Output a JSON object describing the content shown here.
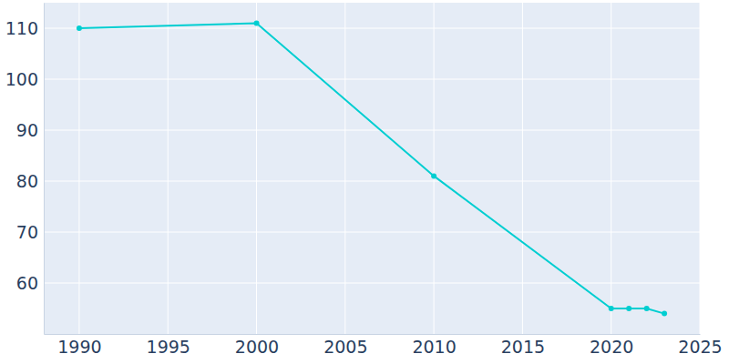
{
  "chart_data": {
    "type": "line",
    "x": [
      1990,
      2000,
      2010,
      2020,
      2021,
      2022,
      2023
    ],
    "values": [
      110,
      111,
      81,
      55,
      55,
      55,
      54
    ],
    "color": "#00ced1",
    "marker": "circle",
    "xlim": [
      1988,
      2025
    ],
    "xticks": [
      1990,
      1995,
      2000,
      2005,
      2010,
      2015,
      2020,
      2025
    ],
    "ylim": [
      50,
      115
    ],
    "yticks": [
      60,
      70,
      80,
      90,
      100,
      110
    ],
    "grid": true
  }
}
